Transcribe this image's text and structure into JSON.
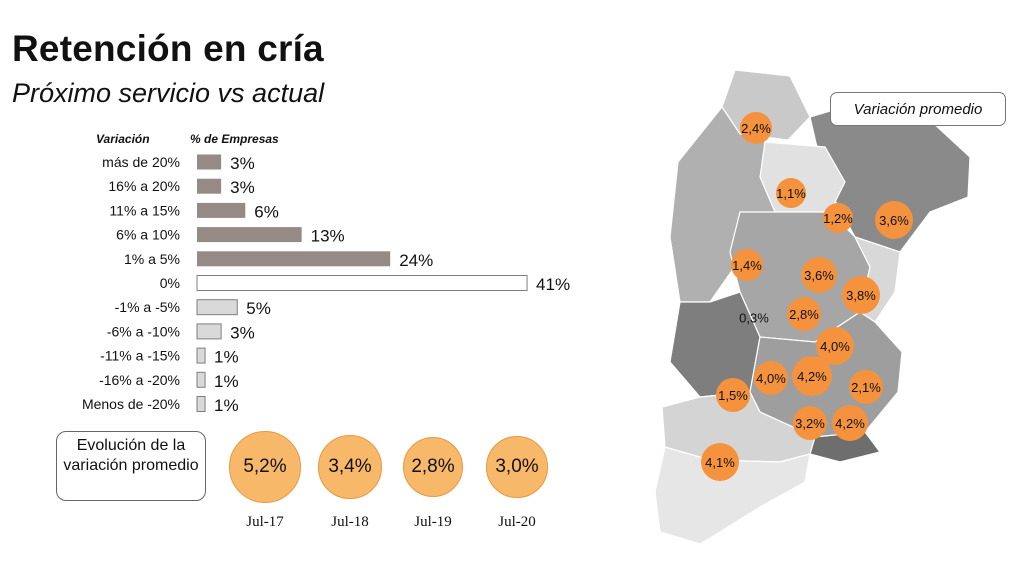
{
  "title": "Retención en cría",
  "subtitle": "Próximo servicio vs actual",
  "chart_data": [
    {
      "type": "bar",
      "orientation": "horizontal",
      "category_header": "Variación",
      "value_header": "% de Empresas",
      "categories": [
        "más de 20%",
        "16% a 20%",
        "11% a 15%",
        "6% a 10%",
        "1% a 5%",
        "0%",
        "-1% a -5%",
        "-6% a -10%",
        "-11% a -15%",
        "-16% a -20%",
        "Menos de -20%"
      ],
      "values": [
        3,
        3,
        6,
        13,
        24,
        41,
        5,
        3,
        1,
        1,
        1
      ],
      "value_labels": [
        "3%",
        "3%",
        "6%",
        "13%",
        "24%",
        "41%",
        "5%",
        "3%",
        "1%",
        "1%",
        "1%"
      ],
      "colors": {
        "positive": "#958a86",
        "zero": "#ffffff",
        "negative": "#d9d9d9",
        "edge": "#7f7f7f"
      }
    },
    {
      "type": "bubble",
      "label": "Evolución de la variación promedio",
      "categories": [
        "Jul-17",
        "Jul-18",
        "Jul-19",
        "Jul-20"
      ],
      "values": [
        5.2,
        3.4,
        2.8,
        3.0
      ],
      "value_labels": [
        "5,2%",
        "3,4%",
        "2,8%",
        "3,0%"
      ],
      "color": "#f7b86a"
    }
  ],
  "map": {
    "legend": "Variación promedio",
    "bubble_color": "#f5923e",
    "values": [
      {
        "label": "2,4%",
        "bubble": true
      },
      {
        "label": "1,1%",
        "bubble": true
      },
      {
        "label": "1,2%",
        "bubble": true
      },
      {
        "label": "3,6%",
        "bubble": true
      },
      {
        "label": "1,4%",
        "bubble": true
      },
      {
        "label": "3,6%",
        "bubble": true
      },
      {
        "label": "3,8%",
        "bubble": true
      },
      {
        "label": "0,3%",
        "bubble": false
      },
      {
        "label": "2,8%",
        "bubble": true
      },
      {
        "label": "4,0%",
        "bubble": true
      },
      {
        "label": "4,0%",
        "bubble": true
      },
      {
        "label": "4,2%",
        "bubble": true
      },
      {
        "label": "2,1%",
        "bubble": true
      },
      {
        "label": "1,5%",
        "bubble": true
      },
      {
        "label": "3,2%",
        "bubble": true
      },
      {
        "label": "4,2%",
        "bubble": true
      },
      {
        "label": "4,1%",
        "bubble": true
      }
    ]
  }
}
